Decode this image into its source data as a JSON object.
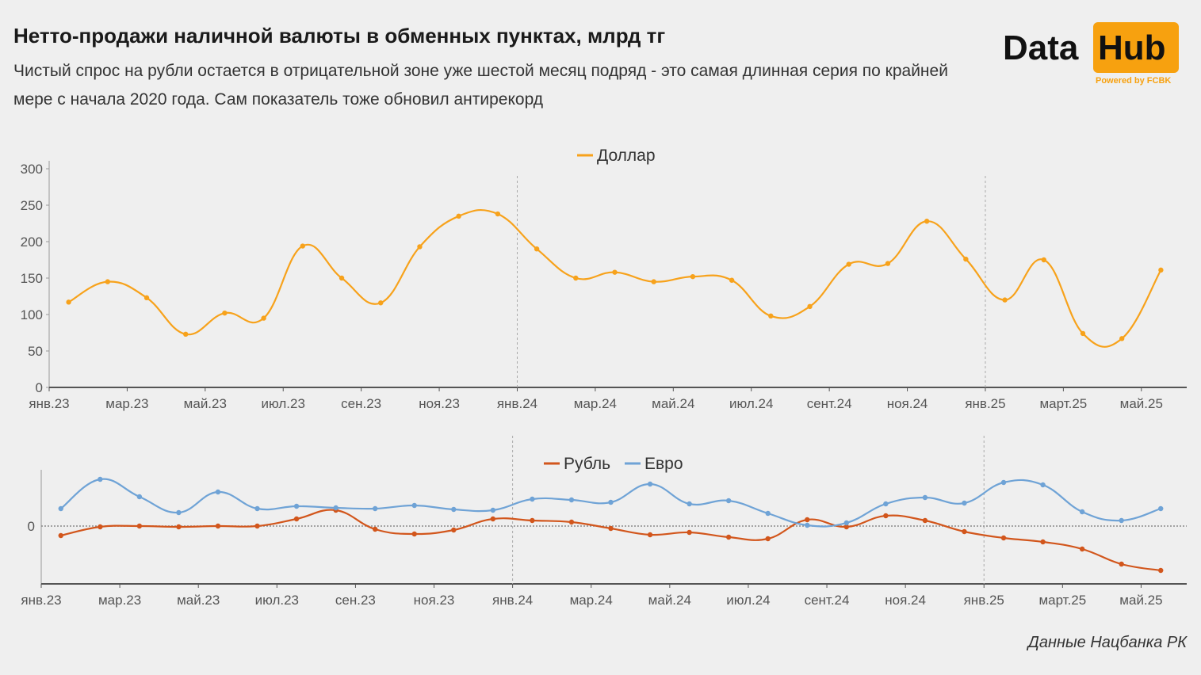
{
  "header": {
    "title": "Нетто-продажи наличной валюты в обменных пунктах, млрд тг",
    "subtitle": "Чистый спрос на рубли остается в отрицательной зоне уже шестой месяц подряд - это самая длинная серия по крайней мере с начала 2020 года. Сам показатель тоже обновил антирекорд"
  },
  "logo": {
    "text_left": "Data",
    "text_right": "Hub",
    "tagline": "Powered by FCBK"
  },
  "source": "Данные Нацбанка РК",
  "colors": {
    "dollar": "#f7a21b",
    "ruble": "#d2561c",
    "euro": "#6fa3d6",
    "logo": "#f7a10f"
  },
  "chart_data": [
    {
      "type": "line",
      "title": "",
      "legend": [
        "Доллар"
      ],
      "legend_position": "top-center",
      "x_tick_labels": [
        "янв.23",
        "мар.23",
        "май.23",
        "июл.23",
        "сен.23",
        "ноя.23",
        "янв.24",
        "мар.24",
        "май.24",
        "июл.24",
        "сент.24",
        "ноя.24",
        "янв.25",
        "март.25",
        "май.25"
      ],
      "y_tick_labels": [
        "0",
        "50",
        "100",
        "150",
        "200",
        "250",
        "300"
      ],
      "ylim": [
        0,
        300
      ],
      "x": [
        "2023-01",
        "2023-02",
        "2023-03",
        "2023-04",
        "2023-05",
        "2023-06",
        "2023-07",
        "2023-08",
        "2023-09",
        "2023-10",
        "2023-11",
        "2023-12",
        "2024-01",
        "2024-02",
        "2024-03",
        "2024-04",
        "2024-05",
        "2024-06",
        "2024-07",
        "2024-08",
        "2024-09",
        "2024-10",
        "2024-11",
        "2024-12",
        "2025-01",
        "2025-02",
        "2025-03",
        "2025-04",
        "2025-05"
      ],
      "series": [
        {
          "name": "Доллар",
          "values": [
            117,
            145,
            123,
            73,
            102,
            95,
            194,
            150,
            116,
            193,
            235,
            238,
            190,
            150,
            158,
            145,
            152,
            147,
            98,
            111,
            169,
            170,
            228,
            176,
            120,
            175,
            74,
            67,
            161
          ]
        }
      ]
    },
    {
      "type": "line",
      "title": "",
      "legend": [
        "Рубль",
        "Евро"
      ],
      "legend_position": "top-center",
      "x_tick_labels": [
        "янв.23",
        "мар.23",
        "май.23",
        "июл.23",
        "сен.23",
        "ноя.23",
        "янв.24",
        "мар.24",
        "май.24",
        "июл.24",
        "сент.24",
        "ноя.24",
        "янв.25",
        "март.25",
        "май.25"
      ],
      "y_tick_labels": [
        "0"
      ],
      "ylim": [
        -73,
        61
      ],
      "x": [
        "2023-01",
        "2023-02",
        "2023-03",
        "2023-04",
        "2023-05",
        "2023-06",
        "2023-07",
        "2023-08",
        "2023-09",
        "2023-10",
        "2023-11",
        "2023-12",
        "2024-01",
        "2024-02",
        "2024-03",
        "2024-04",
        "2024-05",
        "2024-06",
        "2024-07",
        "2024-08",
        "2024-09",
        "2024-10",
        "2024-11",
        "2024-12",
        "2025-01",
        "2025-02",
        "2025-03",
        "2025-04",
        "2025-05"
      ],
      "series": [
        {
          "name": "Рубль",
          "values": [
            -12,
            -1,
            0,
            -1,
            0,
            0,
            9,
            20,
            -4,
            -10,
            -5,
            9,
            7,
            5,
            -3,
            -11,
            -8,
            -14,
            -16,
            8,
            -1,
            13,
            7,
            -7,
            -15,
            -20,
            -29,
            -48,
            -56
          ]
        },
        {
          "name": "Евро",
          "values": [
            22,
            59,
            37,
            17,
            43,
            22,
            25,
            23,
            22,
            26,
            21,
            20,
            34,
            33,
            30,
            53,
            28,
            32,
            16,
            1,
            4,
            28,
            36,
            29,
            55,
            52,
            18,
            7,
            22
          ]
        }
      ]
    }
  ]
}
